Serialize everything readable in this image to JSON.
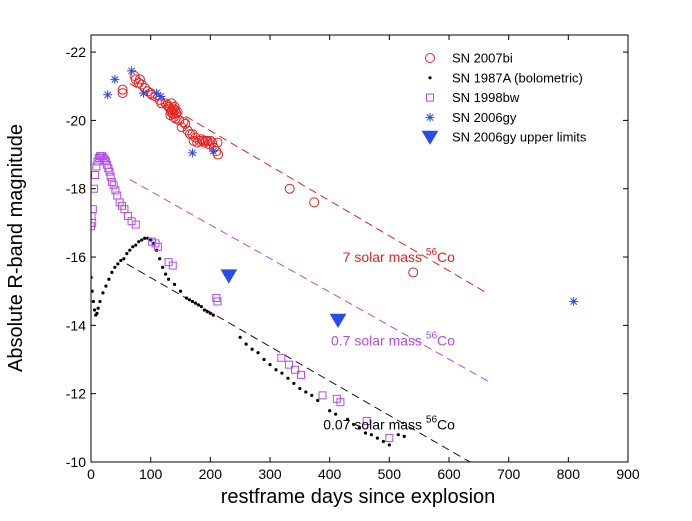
{
  "chart_data": {
    "type": "scatter",
    "xlabel": "restframe days since explosion",
    "ylabel": "Absolute R-band magnitude",
    "xlim": [
      0,
      900
    ],
    "ylim": [
      -22.5,
      -10
    ],
    "y_inverted": true,
    "x_ticks": [
      0,
      100,
      200,
      300,
      400,
      500,
      600,
      700,
      800,
      900
    ],
    "y_ticks": [
      -22,
      -20,
      -18,
      -16,
      -14,
      -12,
      -10
    ],
    "legend_position": "top-right",
    "series": [
      {
        "name": "SN 2007bi",
        "marker": "circle-open",
        "color": "#e8211d",
        "points": [
          [
            53,
            -20.9
          ],
          [
            53,
            -20.8
          ],
          [
            73,
            -21.3
          ],
          [
            75,
            -21.2
          ],
          [
            80,
            -21.1
          ],
          [
            82,
            -21.2
          ],
          [
            85,
            -21.05
          ],
          [
            90,
            -20.95
          ],
          [
            95,
            -20.85
          ],
          [
            100,
            -20.8
          ],
          [
            102,
            -20.75
          ],
          [
            108,
            -20.7
          ],
          [
            115,
            -20.6
          ],
          [
            118,
            -20.5
          ],
          [
            125,
            -20.5
          ],
          [
            128,
            -20.45
          ],
          [
            130,
            -20.4
          ],
          [
            132,
            -20.35
          ],
          [
            133,
            -20.15
          ],
          [
            134,
            -20.25
          ],
          [
            135,
            -20.5
          ],
          [
            136,
            -20.3
          ],
          [
            137,
            -20.2
          ],
          [
            138,
            -20.35
          ],
          [
            139,
            -20.1
          ],
          [
            140,
            -20.4
          ],
          [
            141,
            -20.3
          ],
          [
            142,
            -20.05
          ],
          [
            143,
            -20.2
          ],
          [
            145,
            -20.25
          ],
          [
            148,
            -20.0
          ],
          [
            152,
            -19.8
          ],
          [
            155,
            -19.95
          ],
          [
            158,
            -19.9
          ],
          [
            162,
            -19.7
          ],
          [
            166,
            -19.6
          ],
          [
            170,
            -19.6
          ],
          [
            172,
            -19.4
          ],
          [
            175,
            -19.5
          ],
          [
            178,
            -19.35
          ],
          [
            182,
            -19.4
          ],
          [
            185,
            -19.45
          ],
          [
            188,
            -19.4
          ],
          [
            190,
            -19.35
          ],
          [
            192,
            -19.4
          ],
          [
            195,
            -19.4
          ],
          [
            198,
            -19.3
          ],
          [
            200,
            -19.4
          ],
          [
            203,
            -19.35
          ],
          [
            206,
            -19.2
          ],
          [
            210,
            -19.1
          ],
          [
            212,
            -19.35
          ],
          [
            213,
            -19.0
          ],
          [
            333,
            -18.0
          ],
          [
            374,
            -17.6
          ],
          [
            540,
            -15.55
          ]
        ]
      },
      {
        "name": "SN 1987A (bolometric)",
        "marker": "dot",
        "color": "#000000",
        "points": [
          [
            0,
            -15.4
          ],
          [
            2,
            -15.0
          ],
          [
            4,
            -14.7
          ],
          [
            6,
            -14.45
          ],
          [
            8,
            -14.3
          ],
          [
            10,
            -14.35
          ],
          [
            12,
            -14.5
          ],
          [
            15,
            -14.7
          ],
          [
            20,
            -14.95
          ],
          [
            25,
            -15.15
          ],
          [
            30,
            -15.35
          ],
          [
            35,
            -15.55
          ],
          [
            40,
            -15.7
          ],
          [
            45,
            -15.8
          ],
          [
            50,
            -15.9
          ],
          [
            55,
            -15.95
          ],
          [
            60,
            -16.1
          ],
          [
            65,
            -16.2
          ],
          [
            70,
            -16.3
          ],
          [
            75,
            -16.35
          ],
          [
            80,
            -16.45
          ],
          [
            85,
            -16.5
          ],
          [
            90,
            -16.55
          ],
          [
            95,
            -16.55
          ],
          [
            100,
            -16.5
          ],
          [
            105,
            -16.4
          ],
          [
            110,
            -16.2
          ],
          [
            115,
            -15.95
          ],
          [
            120,
            -15.7
          ],
          [
            125,
            -15.5
          ],
          [
            130,
            -15.35
          ],
          [
            140,
            -15.2
          ],
          [
            150,
            -15.0
          ],
          [
            160,
            -14.8
          ],
          [
            165,
            -14.75
          ],
          [
            170,
            -14.7
          ],
          [
            175,
            -14.65
          ],
          [
            180,
            -14.6
          ],
          [
            185,
            -14.55
          ],
          [
            190,
            -14.45
          ],
          [
            195,
            -14.4
          ],
          [
            200,
            -14.35
          ],
          [
            205,
            -14.3
          ],
          [
            250,
            -13.65
          ],
          [
            260,
            -13.45
          ],
          [
            270,
            -13.3
          ],
          [
            280,
            -13.2
          ],
          [
            290,
            -13.0
          ],
          [
            300,
            -12.85
          ],
          [
            310,
            -12.7
          ],
          [
            320,
            -12.6
          ],
          [
            330,
            -12.45
          ],
          [
            340,
            -12.3
          ],
          [
            350,
            -12.15
          ],
          [
            360,
            -12.05
          ],
          [
            370,
            -11.95
          ],
          [
            380,
            -11.8
          ],
          [
            400,
            -11.5
          ],
          [
            410,
            -11.4
          ],
          [
            430,
            -11.25
          ],
          [
            440,
            -11.1
          ],
          [
            450,
            -11.0
          ],
          [
            460,
            -10.85
          ],
          [
            470,
            -10.8
          ],
          [
            480,
            -10.7
          ],
          [
            490,
            -10.6
          ],
          [
            500,
            -10.5
          ],
          [
            515,
            -10.8
          ],
          [
            525,
            -10.75
          ]
        ]
      },
      {
        "name": "SN 1998bw",
        "marker": "square-open",
        "color": "#b44be8",
        "points": [
          [
            0,
            -16.9
          ],
          [
            1,
            -17.2
          ],
          [
            2,
            -17.0
          ],
          [
            3,
            -17.4
          ],
          [
            5,
            -18.0
          ],
          [
            7,
            -18.4
          ],
          [
            9,
            -18.65
          ],
          [
            11,
            -18.8
          ],
          [
            13,
            -18.9
          ],
          [
            15,
            -18.95
          ],
          [
            17,
            -18.95
          ],
          [
            19,
            -18.95
          ],
          [
            21,
            -18.9
          ],
          [
            23,
            -18.85
          ],
          [
            25,
            -18.8
          ],
          [
            27,
            -18.7
          ],
          [
            29,
            -18.6
          ],
          [
            31,
            -18.5
          ],
          [
            33,
            -18.35
          ],
          [
            35,
            -18.2
          ],
          [
            38,
            -18.1
          ],
          [
            41,
            -17.95
          ],
          [
            44,
            -17.8
          ],
          [
            48,
            -17.6
          ],
          [
            52,
            -17.5
          ],
          [
            56,
            -17.4
          ],
          [
            62,
            -17.2
          ],
          [
            68,
            -17.05
          ],
          [
            75,
            -16.95
          ],
          [
            102,
            -16.45
          ],
          [
            108,
            -16.4
          ],
          [
            112,
            -16.3
          ],
          [
            130,
            -15.85
          ],
          [
            137,
            -15.75
          ],
          [
            210,
            -14.8
          ],
          [
            212,
            -14.7
          ],
          [
            319,
            -13.05
          ],
          [
            332,
            -12.85
          ],
          [
            342,
            -12.7
          ],
          [
            352,
            -12.55
          ],
          [
            388,
            -11.95
          ],
          [
            412,
            -11.85
          ],
          [
            418,
            -11.75
          ],
          [
            462,
            -11.2
          ],
          [
            500,
            -10.7
          ]
        ]
      },
      {
        "name": "SN 2006gy",
        "marker": "asterisk",
        "color": "#2a4ce8",
        "points": [
          [
            28,
            -20.75
          ],
          [
            40,
            -21.2
          ],
          [
            68,
            -21.45
          ],
          [
            88,
            -20.8
          ],
          [
            110,
            -20.8
          ],
          [
            117,
            -20.7
          ],
          [
            170,
            -19.05
          ],
          [
            205,
            -19.1
          ],
          [
            809,
            -14.7
          ]
        ]
      },
      {
        "name": "SN 2006gy upper limits",
        "marker": "triangle-down",
        "color": "#2a4ce8",
        "points": [
          [
            231,
            -15.45
          ],
          [
            414,
            -14.15
          ]
        ]
      }
    ],
    "decay_lines": [
      {
        "label": "7 solar mass",
        "isotope": "56",
        "element": "Co",
        "color": "#e8211d",
        "x": [
          65,
          665
        ],
        "y": [
          -21.08,
          -14.93
        ],
        "label_at": [
          610,
          -16.0
        ]
      },
      {
        "label": "0.7 solar mass",
        "isotope": "56",
        "element": "Co",
        "color": "#b44be8",
        "x": [
          65,
          665
        ],
        "y": [
          -18.27,
          -12.37
        ],
        "label_at": [
          610,
          -13.55
        ]
      },
      {
        "label": "0.07 solar mass",
        "isotope": "56",
        "element": "Co",
        "color": "#000000",
        "x": [
          60,
          650
        ],
        "y": [
          -15.8,
          -9.85
        ],
        "label_at": [
          610,
          -11.1
        ]
      }
    ]
  }
}
